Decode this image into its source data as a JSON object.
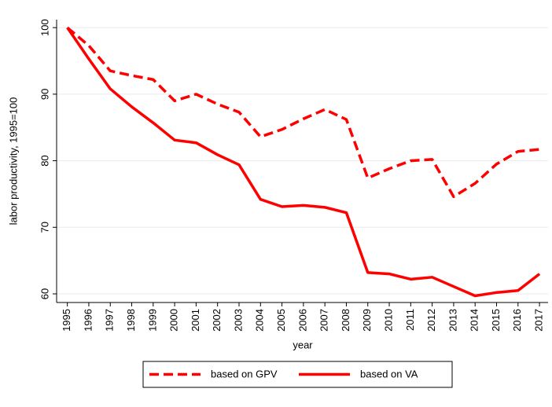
{
  "chart_data": {
    "type": "line",
    "x_label": "year",
    "y_label": "labor productivity, 1995=100",
    "x": [
      1995,
      1996,
      1997,
      1998,
      1999,
      2000,
      2001,
      2002,
      2003,
      2004,
      2005,
      2006,
      2007,
      2008,
      2009,
      2010,
      2011,
      2012,
      2013,
      2014,
      2015,
      2016,
      2017
    ],
    "xlim": [
      1994.5,
      2017.4
    ],
    "xticks": [
      1995,
      1996,
      1997,
      1998,
      1999,
      2000,
      2001,
      2002,
      2003,
      2004,
      2005,
      2006,
      2007,
      2008,
      2009,
      2010,
      2011,
      2012,
      2013,
      2014,
      2015,
      2016,
      2017
    ],
    "ylim": [
      58.7,
      101.2
    ],
    "yticks": [
      60,
      70,
      80,
      90,
      100
    ],
    "grid": true,
    "series": [
      {
        "name": "based on GPV",
        "color": "#ff0000",
        "dash": true,
        "values": [
          100,
          97.3,
          93.5,
          92.8,
          92.2,
          89.0,
          90.0,
          88.5,
          87.3,
          83.6,
          84.7,
          86.3,
          87.7,
          86.2,
          77.4,
          78.8,
          80.0,
          80.2,
          74.6,
          76.6,
          79.5,
          81.4,
          81.7
        ]
      },
      {
        "name": "based on VA",
        "color": "#ff0000",
        "dash": false,
        "values": [
          100,
          95.3,
          90.8,
          88.1,
          85.7,
          83.1,
          82.7,
          80.9,
          79.4,
          74.2,
          73.1,
          73.3,
          73.0,
          72.2,
          63.2,
          63.0,
          62.2,
          62.5,
          61.1,
          59.7,
          60.2,
          60.5,
          63.0
        ]
      }
    ]
  }
}
